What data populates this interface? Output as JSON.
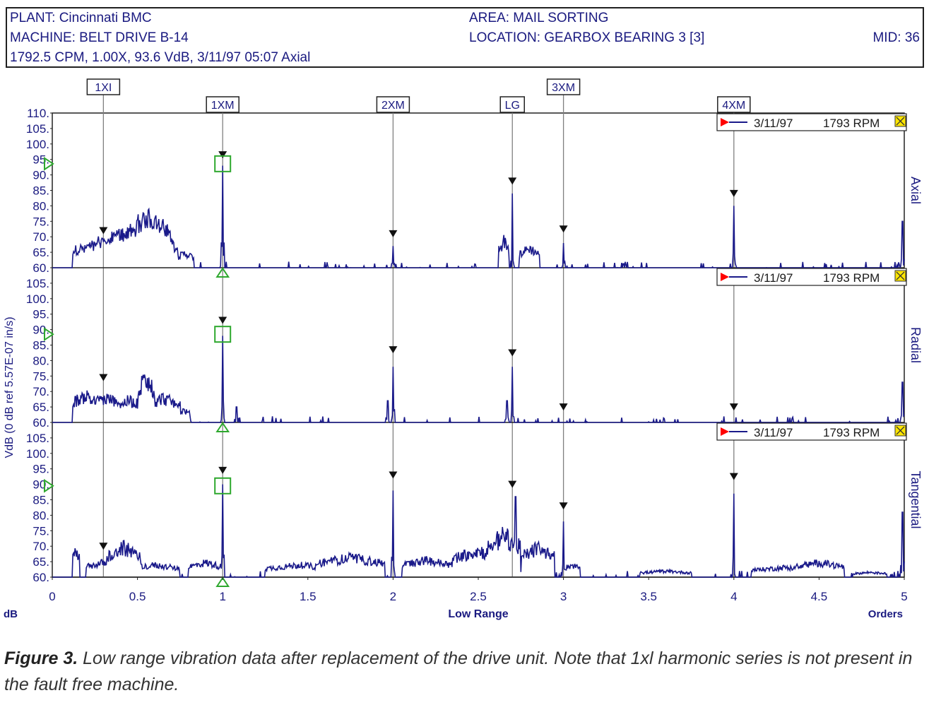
{
  "header": {
    "plant": "PLANT: Cincinnati BMC",
    "machine": "MACHINE: BELT DRIVE B-14",
    "measurement": "1792.5 CPM, 1.00X, 93.6 VdB, 3/11/97 05:07  Axial",
    "area": "AREA: MAIL SORTING",
    "location": "LOCATION: GEARBOX BEARING 3 [3]",
    "mid": "MID: 36"
  },
  "caption": {
    "label": "Figure 3.",
    "text": " Low range vibration data after replacement of the drive unit. Note that 1xl harmonic series is not present in the fault free machine."
  },
  "colors": {
    "trace": "#1a1a8a",
    "axis_text": "#1a1a80",
    "marker_line": "#808080",
    "marker_box": "#2ea82e",
    "legend_flag": "#ff0000",
    "legend_close": "#ffe600"
  },
  "chart_data": {
    "type": "line",
    "ylabel": "VdB (0 dB ref 5.57E-07 in/s)",
    "xlabel": "Low Range",
    "x_unit_left": "dB",
    "x_unit_right": "Orders",
    "xlim": [
      0,
      5
    ],
    "x_ticks": [
      "0",
      "0.5",
      "1",
      "1.5",
      "2",
      "2.5",
      "3",
      "3.5",
      "4",
      "4.5",
      "5"
    ],
    "order_markers": [
      {
        "label": "1XI",
        "x": 0.3
      },
      {
        "label": "1XM",
        "x": 1.0
      },
      {
        "label": "2XM",
        "x": 2.0
      },
      {
        "label": "LG",
        "x": 2.7
      },
      {
        "label": "3XM",
        "x": 3.0
      },
      {
        "label": "4XM",
        "x": 4.0
      }
    ],
    "panels": [
      {
        "name": "Axial",
        "ylim": [
          60,
          110
        ],
        "y_ticks": [
          "110.",
          "105.",
          "100.",
          "95.",
          "90.",
          "85.",
          "80.",
          "75.",
          "70.",
          "65.",
          "60."
        ],
        "legend": {
          "date": "3/11/97",
          "rpm": "1793 RPM"
        },
        "reference_level": 93.6,
        "peak_marker_levels": [
          72,
          96.5,
          71,
          88,
          72.5,
          84
        ],
        "features": [
          {
            "x": 0.17,
            "y": 68,
            "w": 0.13
          },
          {
            "x": 0.27,
            "y": 71,
            "w": 0.08
          },
          {
            "x": 0.35,
            "y": 72,
            "w": 0.1
          },
          {
            "x": 0.45,
            "y": 76,
            "w": 0.1
          },
          {
            "x": 0.55,
            "y": 81,
            "w": 0.08
          },
          {
            "x": 0.62,
            "y": 78,
            "w": 0.08
          },
          {
            "x": 0.68,
            "y": 71,
            "w": 0.06
          },
          {
            "x": 0.78,
            "y": 66,
            "w": 0.05
          },
          {
            "x": 1.0,
            "y": 93,
            "w": 0.012
          },
          {
            "x": 2.0,
            "y": 67,
            "w": 0.012
          },
          {
            "x": 2.65,
            "y": 71,
            "w": 0.03
          },
          {
            "x": 2.7,
            "y": 84,
            "w": 0.012
          },
          {
            "x": 2.8,
            "y": 68,
            "w": 0.06
          },
          {
            "x": 3.0,
            "y": 68,
            "w": 0.012
          },
          {
            "x": 4.0,
            "y": 80,
            "w": 0.012
          },
          {
            "x": 4.99,
            "y": 75,
            "w": 0.012
          }
        ]
      },
      {
        "name": "Radial",
        "ylim": [
          60,
          110
        ],
        "y_ticks": [
          "105.",
          "100.",
          "95.",
          "90.",
          "85.",
          "80.",
          "75.",
          "70.",
          "65.",
          "60."
        ],
        "legend": {
          "date": "3/11/97",
          "rpm": "1793 RPM"
        },
        "reference_level": 88.5,
        "peak_marker_levels": [
          74.5,
          93,
          83.5,
          82.5,
          65,
          65
        ],
        "features": [
          {
            "x": 0.2,
            "y": 71,
            "w": 0.1
          },
          {
            "x": 0.32,
            "y": 70,
            "w": 0.1
          },
          {
            "x": 0.45,
            "y": 69,
            "w": 0.1
          },
          {
            "x": 0.55,
            "y": 78,
            "w": 0.05
          },
          {
            "x": 0.65,
            "y": 70,
            "w": 0.1
          },
          {
            "x": 0.77,
            "y": 65,
            "w": 0.04
          },
          {
            "x": 1.0,
            "y": 88,
            "w": 0.012
          },
          {
            "x": 1.08,
            "y": 65,
            "w": 0.012
          },
          {
            "x": 2.0,
            "y": 78,
            "w": 0.012
          },
          {
            "x": 1.97,
            "y": 67,
            "w": 0.012
          },
          {
            "x": 2.7,
            "y": 78,
            "w": 0.012
          },
          {
            "x": 2.67,
            "y": 67,
            "w": 0.012
          },
          {
            "x": 4.99,
            "y": 73,
            "w": 0.012
          }
        ]
      },
      {
        "name": "Tangential",
        "ylim": [
          60,
          110
        ],
        "y_ticks": [
          "105.",
          "100.",
          "95.",
          "90.",
          "85.",
          "80.",
          "75.",
          "70.",
          "65.",
          "60."
        ],
        "legend": {
          "date": "3/11/97",
          "rpm": "1793 RPM"
        },
        "reference_level": 89.5,
        "peak_marker_levels": [
          70,
          94.5,
          93,
          90,
          83,
          92.5
        ],
        "features": [
          {
            "x": 0.12,
            "y": 71,
            "w": 0.04
          },
          {
            "x": 0.3,
            "y": 66,
            "w": 0.1
          },
          {
            "x": 0.42,
            "y": 72,
            "w": 0.1
          },
          {
            "x": 0.6,
            "y": 65,
            "w": 0.15
          },
          {
            "x": 0.9,
            "y": 66,
            "w": 0.1
          },
          {
            "x": 1.0,
            "y": 90,
            "w": 0.012
          },
          {
            "x": 1.45,
            "y": 65,
            "w": 0.2
          },
          {
            "x": 1.75,
            "y": 68,
            "w": 0.2
          },
          {
            "x": 2.0,
            "y": 88,
            "w": 0.012
          },
          {
            "x": 2.2,
            "y": 67,
            "w": 0.15
          },
          {
            "x": 2.5,
            "y": 71,
            "w": 0.15
          },
          {
            "x": 2.65,
            "y": 77,
            "w": 0.1
          },
          {
            "x": 2.72,
            "y": 86,
            "w": 0.012
          },
          {
            "x": 2.85,
            "y": 72,
            "w": 0.1
          },
          {
            "x": 3.0,
            "y": 78,
            "w": 0.012
          },
          {
            "x": 3.05,
            "y": 65,
            "w": 0.05
          },
          {
            "x": 3.6,
            "y": 62.5,
            "w": 0.15
          },
          {
            "x": 4.0,
            "y": 87,
            "w": 0.012
          },
          {
            "x": 4.3,
            "y": 64,
            "w": 0.2
          },
          {
            "x": 4.5,
            "y": 66,
            "w": 0.15
          },
          {
            "x": 4.8,
            "y": 62,
            "w": 0.1
          },
          {
            "x": 4.99,
            "y": 81,
            "w": 0.012
          }
        ]
      }
    ]
  }
}
